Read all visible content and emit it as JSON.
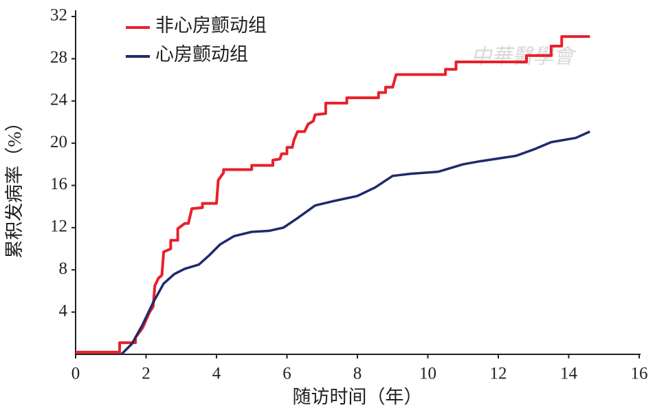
{
  "chart_data": {
    "type": "line",
    "xlabel": "随访时间（年）",
    "ylabel": "累积发病率（%）",
    "watermark": "中華醫學會",
    "xlim": [
      0,
      16
    ],
    "xticks": [
      0,
      2,
      4,
      6,
      8,
      10,
      12,
      14,
      16
    ],
    "ylim": [
      0,
      32
    ],
    "yticks": [
      4,
      8,
      12,
      16,
      20,
      24,
      28,
      32
    ],
    "series": [
      {
        "name": "非心房颤动组",
        "color": "#e8202a",
        "x": [
          0,
          1.25,
          1.25,
          1.7,
          1.7,
          1.9,
          2.1,
          2.2,
          2.25,
          2.35,
          2.45,
          2.5,
          2.7,
          2.7,
          2.9,
          2.9,
          3.1,
          3.2,
          3.3,
          3.6,
          3.6,
          4.0,
          4.05,
          4.2,
          4.2,
          5.0,
          5.0,
          5.6,
          5.6,
          5.8,
          5.85,
          6.0,
          6.0,
          6.15,
          6.2,
          6.3,
          6.5,
          6.6,
          6.75,
          6.8,
          7.1,
          7.1,
          7.7,
          7.7,
          8.6,
          8.6,
          8.8,
          8.8,
          9.0,
          9.1,
          10.5,
          10.5,
          10.8,
          10.8,
          12.8,
          12.8,
          13.5,
          13.5,
          13.8,
          13.8,
          14.6
        ],
        "values": [
          0.2,
          0.2,
          1.1,
          1.1,
          1.6,
          2.5,
          4,
          4.5,
          6.5,
          7.2,
          7.5,
          9.7,
          10,
          10.8,
          10.8,
          11.9,
          12.4,
          12.4,
          13.8,
          13.9,
          14.3,
          14.3,
          16.5,
          17.2,
          17.5,
          17.5,
          17.9,
          17.9,
          18.4,
          18.5,
          19,
          19,
          19.6,
          19.6,
          20.3,
          21.1,
          21.1,
          21.8,
          22.1,
          22.7,
          22.8,
          23.8,
          23.8,
          24.3,
          24.3,
          24.8,
          24.8,
          25.3,
          25.3,
          26.5,
          26.5,
          27,
          27,
          27.7,
          27.7,
          28.3,
          28.3,
          29.2,
          29.2,
          30.1,
          30.1
        ]
      },
      {
        "name": "心房颤动组",
        "color": "#1f2a6b",
        "x": [
          1.3,
          1.6,
          1.9,
          2.2,
          2.5,
          2.8,
          3.1,
          3.5,
          3.8,
          4.1,
          4.5,
          5,
          5.5,
          5.9,
          6.3,
          6.8,
          7.3,
          8,
          8.5,
          9,
          9.5,
          10.3,
          11,
          11.5,
          12.5,
          13,
          13.5,
          14.2,
          14.6
        ],
        "values": [
          0,
          1,
          2.8,
          4.9,
          6.7,
          7.6,
          8.1,
          8.5,
          9.4,
          10.4,
          11.2,
          11.6,
          11.7,
          12,
          12.9,
          14.1,
          14.5,
          15,
          15.8,
          16.9,
          17.1,
          17.3,
          18,
          18.3,
          18.8,
          19.4,
          20.1,
          20.5,
          21.1
        ]
      }
    ]
  }
}
